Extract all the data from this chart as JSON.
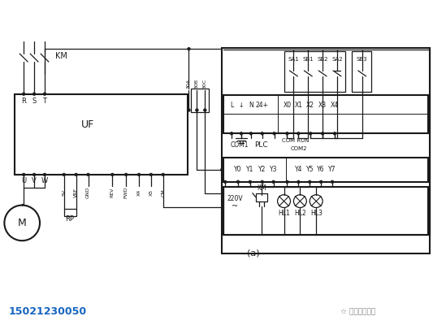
{
  "bg": "white",
  "lc": "#1a1a1a",
  "lw": 0.9,
  "lw2": 1.5,
  "phone": "15021230050",
  "phone_color": "#1565C0",
  "watermark": "安徽信控电气",
  "caption": "(a)",
  "vfd_label": "UF",
  "km_label": "KM",
  "motor_label": "M",
  "rp_label": "RP",
  "sw_labels": [
    "SA1",
    "SB1",
    "SB2",
    "SA2",
    "SB3"
  ],
  "in_terms": [
    "L",
    "↓",
    "N",
    "24+",
    "",
    "X0",
    "X1",
    "X2",
    "X3",
    "X4"
  ],
  "out_terms": [
    "",
    "Y0",
    "Y1",
    "Y2",
    "Y3",
    "",
    "Y4",
    "Y5",
    "Y6",
    "Y7"
  ],
  "bot_terms_left": [
    "5V",
    "VRF",
    "GND",
    "REV",
    "FWD",
    "X4",
    "X5",
    "CM"
  ],
  "hl_labels": [
    "HL1",
    "HL2",
    "HL3"
  ]
}
